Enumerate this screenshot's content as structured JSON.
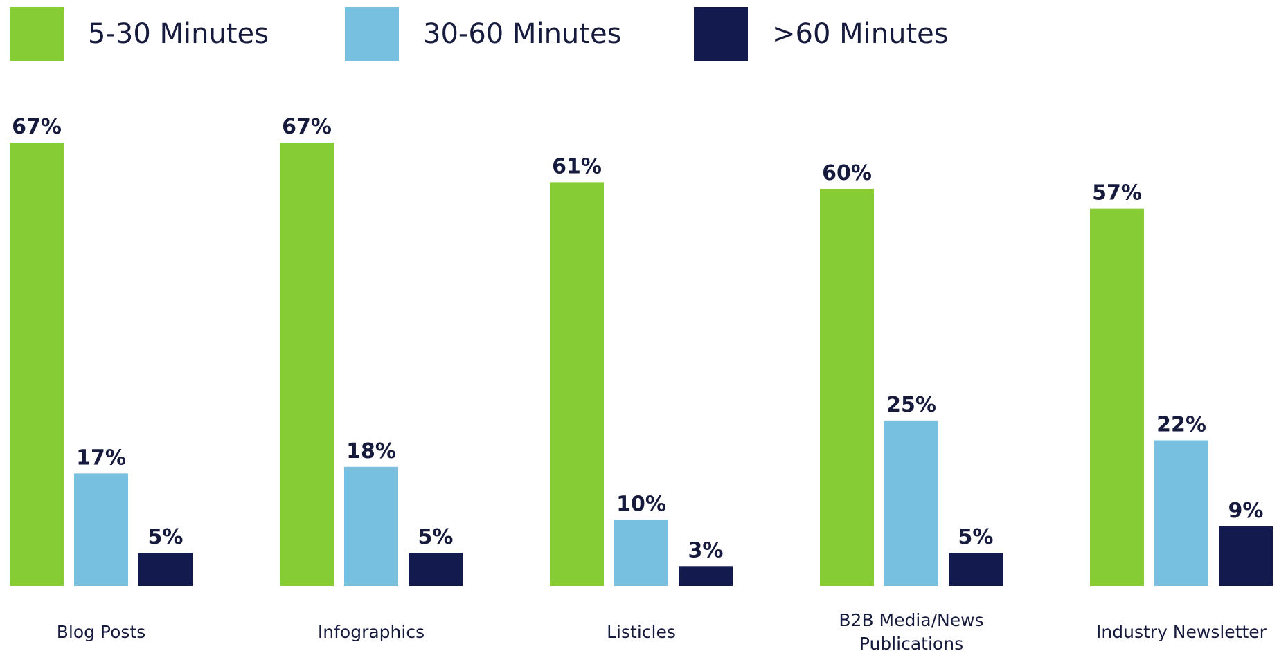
{
  "chart_data": {
    "type": "bar",
    "categories": [
      [
        "Blog Posts"
      ],
      [
        "Infographics"
      ],
      [
        "Listicles"
      ],
      [
        "B2B Media/News",
        "Publications"
      ],
      [
        "Industry Newsletter"
      ]
    ],
    "series": [
      {
        "name": "5-30 Minutes",
        "color": "#86cc35",
        "values": [
          67,
          67,
          61,
          60,
          57
        ]
      },
      {
        "name": "30-60 Minutes",
        "color": "#78c0e0",
        "values": [
          17,
          18,
          10,
          25,
          22
        ]
      },
      {
        "name": ">60 Minutes",
        "color": "#131a4d",
        "values": [
          5,
          5,
          3,
          5,
          9
        ]
      }
    ],
    "value_suffix": "%",
    "legend_position": "top",
    "grid": false,
    "ylim": [
      0,
      67
    ]
  }
}
